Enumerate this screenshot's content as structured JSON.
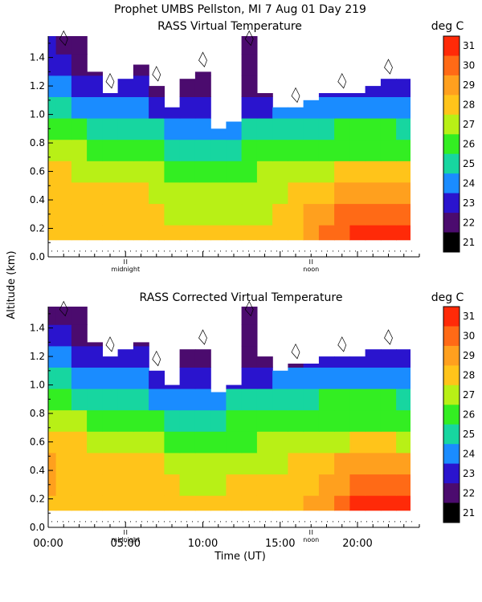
{
  "header": {
    "title": "Prophet  UMBS Pellston, MI    7 Aug 01 Day 219"
  },
  "chart_data": [
    {
      "type": "heatmap",
      "title": "RASS Virtual Temperature",
      "unit_label": "deg C",
      "ylabel": "Altitude (km)",
      "ylim": [
        0.0,
        1.55
      ],
      "yticks": [
        "0.0",
        "0.2",
        "0.4",
        "0.6",
        "0.8",
        "1.0",
        "1.2",
        "1.4"
      ],
      "xlim_hours": [
        0,
        24
      ],
      "markers": [
        {
          "hour": 5,
          "label": "midnight"
        },
        {
          "hour": 17,
          "label": "noon"
        }
      ],
      "colorbar_values": [
        "21",
        "22",
        "23",
        "24",
        "25",
        "26",
        "27",
        "28",
        "29",
        "30",
        "31"
      ],
      "data_start_altitude": 0.12,
      "time_hours": [
        0,
        1,
        2,
        3,
        4,
        5,
        6,
        7,
        8,
        9,
        10,
        11,
        12,
        13,
        14,
        15,
        16,
        17,
        18,
        19,
        20,
        21,
        22,
        23
      ],
      "top_altitude": [
        1.55,
        1.55,
        1.55,
        1.3,
        1.15,
        1.25,
        1.35,
        1.2,
        1.05,
        1.25,
        1.3,
        0.9,
        0.95,
        1.55,
        1.15,
        1.05,
        1.05,
        1.1,
        1.15,
        1.15,
        1.15,
        1.2,
        1.25,
        1.25
      ],
      "temperature_rows": [
        {
          "altitude": 0.15,
          "values": [
            27.5,
            27.6,
            27.6,
            27.5,
            27.5,
            27.3,
            27.2,
            27.0,
            27.0,
            27.0,
            27.0,
            27.0,
            27.0,
            27.0,
            27.0,
            27.3,
            27.8,
            28.4,
            29.0,
            29.6,
            30.2,
            30.6,
            30.8,
            30.7
          ]
        },
        {
          "altitude": 0.3,
          "values": [
            27.5,
            27.6,
            27.6,
            27.5,
            27.5,
            27.3,
            27.1,
            27.0,
            26.8,
            26.8,
            26.7,
            26.8,
            26.8,
            26.9,
            26.9,
            27.0,
            27.4,
            28.0,
            28.5,
            29.0,
            29.4,
            29.6,
            29.6,
            29.5
          ]
        },
        {
          "altitude": 0.45,
          "values": [
            27.6,
            27.5,
            27.4,
            27.3,
            27.2,
            27.1,
            27.0,
            26.8,
            26.6,
            26.5,
            26.5,
            26.5,
            26.6,
            26.6,
            26.7,
            26.8,
            27.0,
            27.4,
            27.8,
            28.1,
            28.3,
            28.4,
            28.3,
            28.2
          ]
        },
        {
          "altitude": 0.6,
          "values": [
            27.2,
            27.0,
            26.8,
            26.6,
            26.5,
            26.5,
            26.3,
            26.0,
            25.6,
            25.5,
            25.5,
            25.6,
            25.8,
            25.8,
            26.0,
            26.2,
            26.4,
            26.6,
            26.8,
            27.0,
            27.1,
            27.1,
            27.0,
            27.0
          ]
        },
        {
          "altitude": 0.75,
          "values": [
            26.5,
            26.3,
            26.0,
            25.8,
            25.6,
            25.6,
            25.4,
            25.0,
            24.5,
            24.0,
            24.0,
            24.6,
            24.9,
            25.0,
            25.1,
            25.3,
            25.5,
            25.7,
            25.8,
            25.8,
            25.9,
            25.9,
            25.8,
            25.8
          ]
        },
        {
          "altitude": 0.9,
          "values": [
            25.5,
            25.3,
            25.0,
            24.8,
            24.6,
            24.6,
            24.4,
            24.0,
            23.5,
            23.4,
            23.5,
            23.9,
            23.9,
            24.0,
            24.3,
            24.5,
            24.7,
            24.8,
            24.9,
            25.0,
            25.0,
            25.0,
            25.0,
            24.9
          ]
        },
        {
          "altitude": 1.05,
          "values": [
            24.5,
            24.2,
            23.9,
            23.6,
            23.4,
            23.4,
            23.2,
            22.8,
            22.5,
            22.4,
            22.5,
            22.6,
            22.5,
            22.6,
            22.8,
            23.0,
            23.1,
            23.2,
            23.3,
            23.4,
            23.4,
            23.5,
            23.4,
            23.4
          ]
        },
        {
          "altitude": 1.2,
          "values": [
            23.6,
            23.2,
            22.8,
            22.5,
            22.2,
            22.2,
            22.0,
            21.8,
            21.5,
            21.4,
            21.4,
            21.5,
            21.5,
            21.6,
            21.7,
            21.8,
            21.8,
            21.9,
            22.0,
            22.0,
            22.1,
            22.2,
            22.3,
            22.3
          ]
        },
        {
          "altitude": 1.35,
          "values": [
            22.6,
            22.2,
            21.8,
            21.5,
            21.2,
            21.2,
            21.0,
            21.0,
            21.0,
            21.0,
            21.0,
            21.0,
            21.0,
            21.0,
            21.0,
            21.0,
            21.0,
            21.0,
            21.0,
            21.0,
            21.0,
            21.0,
            21.0,
            21.0
          ]
        },
        {
          "altitude": 1.5,
          "values": [
            22.0,
            21.6,
            21.2,
            21.0,
            21.0,
            21.0,
            21.0,
            21.0,
            21.0,
            21.0,
            21.0,
            21.0,
            21.0,
            21.0,
            21.0,
            21.0,
            21.0,
            21.0,
            21.0,
            21.0,
            21.0,
            21.0,
            21.0,
            21.0
          ]
        }
      ]
    },
    {
      "type": "heatmap",
      "title": "RASS Corrected Virtual Temperature",
      "unit_label": "deg C",
      "xlabel": "Time (UT)",
      "ylim": [
        0.0,
        1.55
      ],
      "yticks": [
        "0.0",
        "0.2",
        "0.4",
        "0.6",
        "0.8",
        "1.0",
        "1.2",
        "1.4"
      ],
      "xlim_hours": [
        0,
        24
      ],
      "xticks": [
        {
          "hour": 0,
          "label": "00:00"
        },
        {
          "hour": 5,
          "label": "05:00"
        },
        {
          "hour": 10,
          "label": "10:00"
        },
        {
          "hour": 15,
          "label": "15:00"
        },
        {
          "hour": 20,
          "label": "20:00"
        }
      ],
      "markers": [
        {
          "hour": 5,
          "label": "midnight"
        },
        {
          "hour": 17,
          "label": "noon"
        }
      ],
      "colorbar_values": [
        "21",
        "22",
        "23",
        "24",
        "25",
        "26",
        "27",
        "28",
        "29",
        "30",
        "31"
      ],
      "data_start_altitude": 0.12,
      "time_hours": [
        0,
        1,
        2,
        3,
        4,
        5,
        6,
        7,
        8,
        9,
        10,
        11,
        12,
        13,
        14,
        15,
        16,
        17,
        18,
        19,
        20,
        21,
        22,
        23
      ],
      "top_altitude": [
        1.55,
        1.55,
        1.55,
        1.3,
        1.2,
        1.25,
        1.3,
        1.1,
        1.0,
        1.25,
        1.25,
        0.95,
        1.0,
        1.55,
        1.2,
        1.1,
        1.15,
        1.15,
        1.2,
        1.2,
        1.2,
        1.25,
        1.25,
        1.25
      ],
      "temperature_rows": [
        {
          "altitude": 0.15,
          "values": [
            27.8,
            27.8,
            27.6,
            27.6,
            27.5,
            27.4,
            27.3,
            27.2,
            27.1,
            27.0,
            27.0,
            27.0,
            27.0,
            27.0,
            27.0,
            27.2,
            27.6,
            28.2,
            28.8,
            29.4,
            30.0,
            30.4,
            30.6,
            30.5
          ]
        },
        {
          "altitude": 0.3,
          "values": [
            28.0,
            27.8,
            27.6,
            27.6,
            27.5,
            27.4,
            27.2,
            27.1,
            27.0,
            26.9,
            26.9,
            26.9,
            27.0,
            27.0,
            27.0,
            27.0,
            27.3,
            27.9,
            28.4,
            28.9,
            29.2,
            29.4,
            29.4,
            29.3
          ]
        },
        {
          "altitude": 0.45,
          "values": [
            28.6,
            27.9,
            27.6,
            27.5,
            27.4,
            27.3,
            27.1,
            27.0,
            26.8,
            26.7,
            26.7,
            26.7,
            26.8,
            26.8,
            26.8,
            26.8,
            27.0,
            27.4,
            27.8,
            28.0,
            28.2,
            28.3,
            28.2,
            28.1
          ]
        },
        {
          "altitude": 0.6,
          "values": [
            27.8,
            27.3,
            27.0,
            26.8,
            26.7,
            26.6,
            26.4,
            26.1,
            25.8,
            25.6,
            25.6,
            25.7,
            25.9,
            25.9,
            26.0,
            26.2,
            26.4,
            26.6,
            26.8,
            26.9,
            27.0,
            27.0,
            27.0,
            26.9
          ]
        },
        {
          "altitude": 0.75,
          "values": [
            26.6,
            26.4,
            26.1,
            25.9,
            25.7,
            25.6,
            25.4,
            25.0,
            24.5,
            24.0,
            24.2,
            24.7,
            25.0,
            25.1,
            25.2,
            25.4,
            25.6,
            25.7,
            25.8,
            25.8,
            25.9,
            25.9,
            25.8,
            25.8
          ]
        },
        {
          "altitude": 0.9,
          "values": [
            25.4,
            25.2,
            24.9,
            24.7,
            24.5,
            24.5,
            24.3,
            23.9,
            23.4,
            23.2,
            23.3,
            23.8,
            24.0,
            24.1,
            24.4,
            24.6,
            24.8,
            24.9,
            25.0,
            25.0,
            25.0,
            25.0,
            25.0,
            24.9
          ]
        },
        {
          "altitude": 1.05,
          "values": [
            24.3,
            24.0,
            23.7,
            23.5,
            23.3,
            23.3,
            23.1,
            22.7,
            22.3,
            22.2,
            22.3,
            22.5,
            22.5,
            22.6,
            22.8,
            23.0,
            23.2,
            23.3,
            23.4,
            23.5,
            23.5,
            23.5,
            23.4,
            23.4
          ]
        },
        {
          "altitude": 1.2,
          "values": [
            23.3,
            23.0,
            22.7,
            22.4,
            22.2,
            22.1,
            22.0,
            21.7,
            21.4,
            21.3,
            21.3,
            21.4,
            21.4,
            21.5,
            21.6,
            21.8,
            21.9,
            22.0,
            22.1,
            22.1,
            22.2,
            22.3,
            22.3,
            22.3
          ]
        },
        {
          "altitude": 1.35,
          "values": [
            22.5,
            22.1,
            21.8,
            21.4,
            21.1,
            21.1,
            21.0,
            21.0,
            21.0,
            21.0,
            21.0,
            21.0,
            21.0,
            21.0,
            21.0,
            21.0,
            21.0,
            21.0,
            21.0,
            21.0,
            21.0,
            21.0,
            21.0,
            21.0
          ]
        },
        {
          "altitude": 1.5,
          "values": [
            21.9,
            21.5,
            21.2,
            21.0,
            21.0,
            21.0,
            21.0,
            21.0,
            21.0,
            21.0,
            21.0,
            21.0,
            21.0,
            21.0,
            21.0,
            21.0,
            21.0,
            21.0,
            21.0,
            21.0,
            21.0,
            21.0,
            21.0,
            21.0
          ]
        }
      ]
    }
  ],
  "colors": {
    "palette": [
      "#000000",
      "#4b0b6e",
      "#2a14ce",
      "#1a8cff",
      "#17d6a0",
      "#33ee22",
      "#b8f016",
      "#ffc41a",
      "#ffa01e",
      "#ff6a16",
      "#ff2a08",
      "#ee0000"
    ]
  }
}
